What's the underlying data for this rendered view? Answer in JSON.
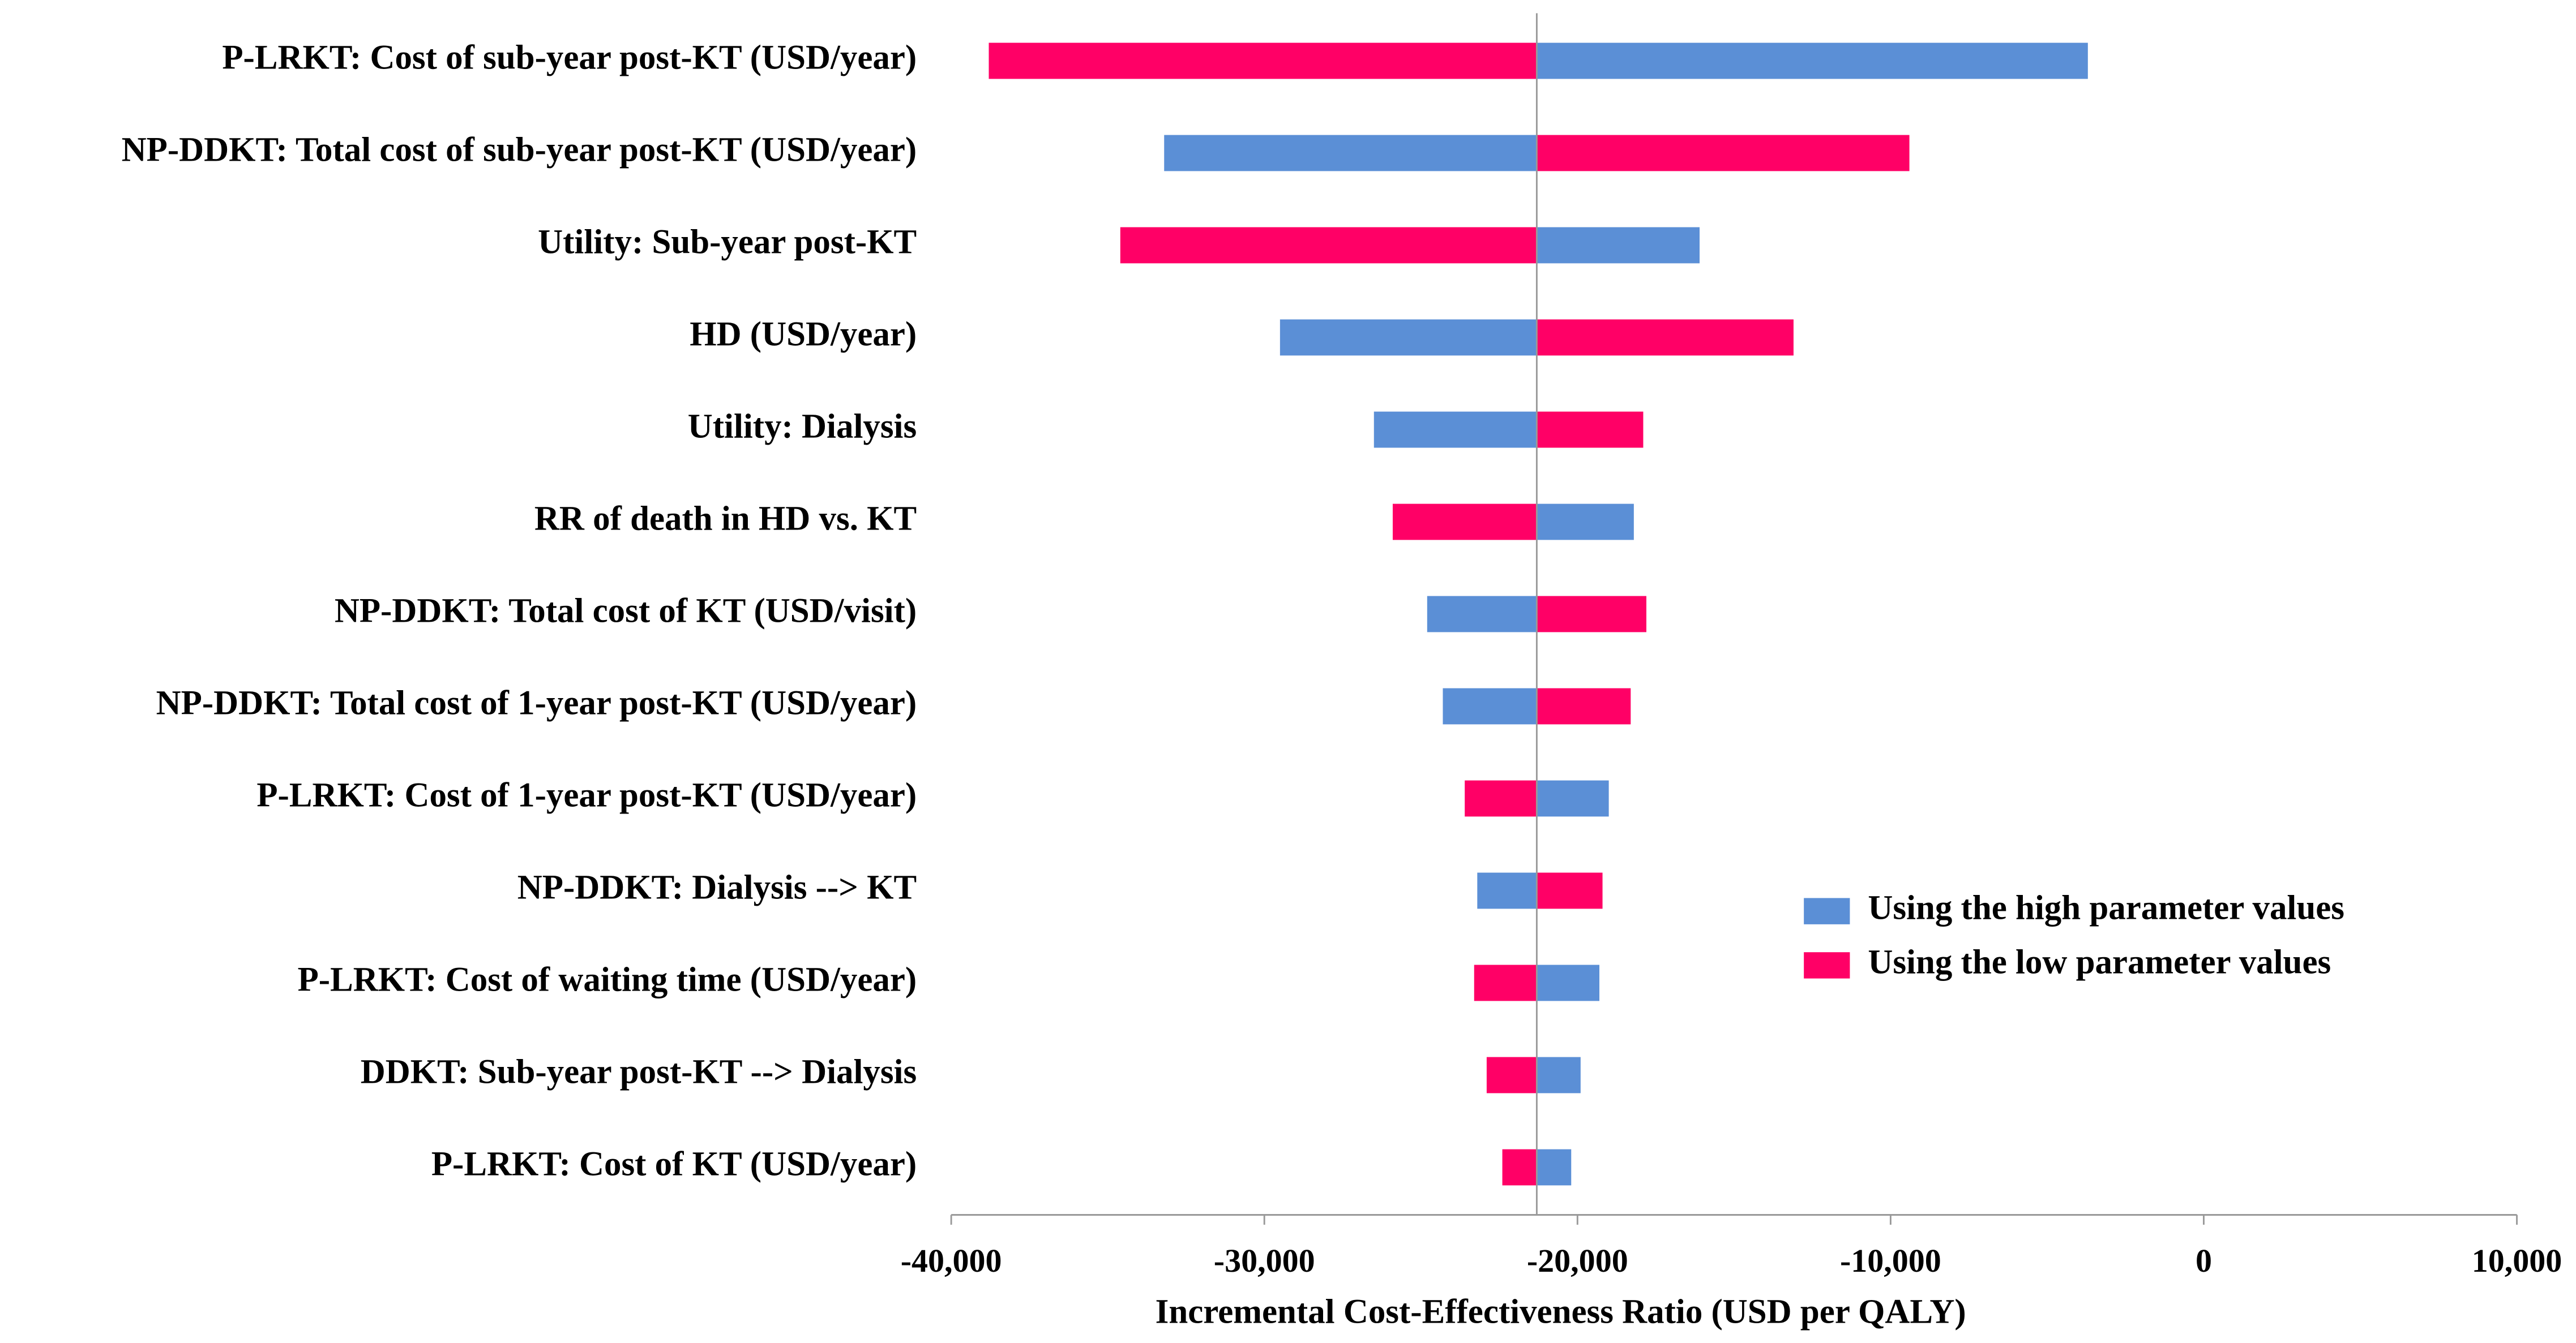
{
  "chart_data": {
    "type": "tornado",
    "x_label": "Incremental Cost-Effectiveness Ratio (USD per QALY)",
    "categories": [
      "P-LRKT: Cost of sub-year post-KT (USD/year)",
      "NP-DDKT: Total cost of sub-year post-KT (USD/year)",
      "Utility: Sub-year post-KT",
      "HD (USD/year)",
      "Utility: Dialysis",
      "RR of death in HD vs. KT",
      "NP-DDKT: Total cost of KT (USD/visit)",
      "NP-DDKT: Total cost of 1-year post-KT (USD/year)",
      "P-LRKT: Cost of 1-year post-KT (USD/year)",
      "NP-DDKT: Dialysis --> KT",
      "P-LRKT: Cost of waiting time (USD/year)",
      "DDKT: Sub-year post-KT --> Dialysis",
      "P-LRKT: Cost of KT (USD/year)"
    ],
    "base_value": -21300,
    "series": [
      {
        "name": "Using the high parameter values",
        "color": "#5b8fd6",
        "values": [
          -3700,
          -33200,
          -16100,
          -29500,
          -26500,
          -18200,
          -24800,
          -24300,
          -19000,
          -23200,
          -19300,
          -19900,
          -20200
        ]
      },
      {
        "name": "Using the low parameter values",
        "color": "#ff0066",
        "values": [
          -38800,
          -9400,
          -34600,
          -13100,
          -17900,
          -25900,
          -17800,
          -18300,
          -23600,
          -19200,
          -23300,
          -22900,
          -22400
        ]
      }
    ],
    "xlim": [
      -40000,
      10000
    ],
    "xticks": [
      {
        "value": -40000,
        "label": "-40,000"
      },
      {
        "value": -30000,
        "label": "-30,000"
      },
      {
        "value": -20000,
        "label": "-20,000"
      },
      {
        "value": -10000,
        "label": "-10,000"
      },
      0,
      {
        "value": 10000,
        "label": "10,000"
      }
    ],
    "legend": "right"
  }
}
